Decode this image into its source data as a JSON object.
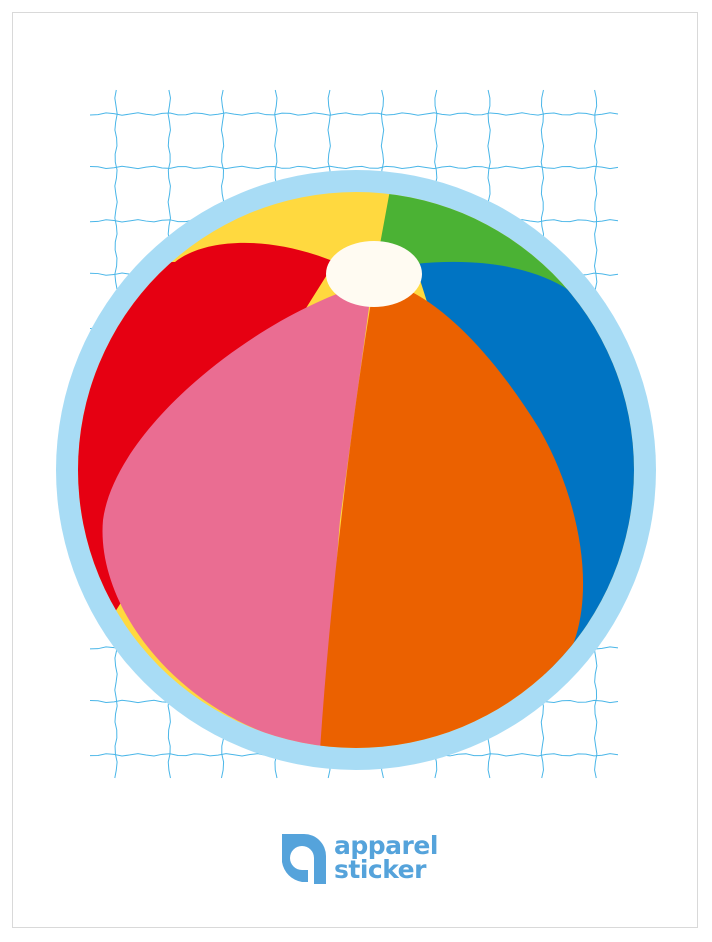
{
  "brand": {
    "name_line1": "apparel",
    "name_line2": "sticker",
    "color": "#55a3db"
  },
  "colors": {
    "ring": "#a8dcf5",
    "grid": "#4ab6e8",
    "yellow": "#ffd93f",
    "green": "#4bb234",
    "blue": "#0074c3",
    "red": "#e60012",
    "pink": "#ea6d92",
    "orange": "#eb6100",
    "cap": "#fffbf2"
  }
}
